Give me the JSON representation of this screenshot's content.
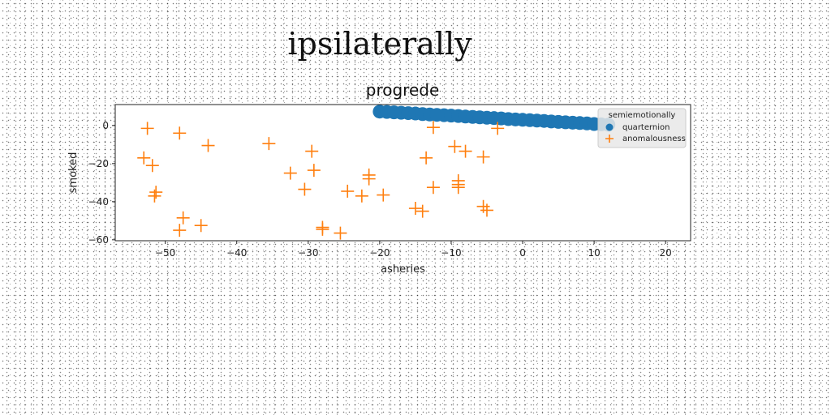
{
  "chart_data": {
    "type": "scatter",
    "suptitle": "ipsilaterally",
    "title": "progrede",
    "xlabel": "asheries",
    "ylabel": "smoked",
    "xlim": [
      -57,
      23.5
    ],
    "ylim": [
      -60.5,
      11
    ],
    "xticks": [
      -50,
      -40,
      -30,
      -20,
      -10,
      0,
      10,
      20
    ],
    "yticks": [
      0,
      -20,
      -40,
      -60
    ],
    "grid": false,
    "legend": {
      "title": "semiemotionally",
      "position": "upper right"
    },
    "series": [
      {
        "name": "quarternion",
        "marker": "circle",
        "color": "#1f77b4",
        "x": [
          -20,
          -19,
          -18,
          -17,
          -16,
          -15,
          -14,
          -13,
          -12,
          -11,
          -10,
          -9,
          -8,
          -7,
          -6,
          -5,
          -4,
          -3,
          -2,
          -1,
          0,
          1,
          2,
          3,
          4,
          5,
          6,
          7,
          8,
          9,
          10,
          11,
          12
        ],
        "y": [
          7.3,
          7.1,
          6.9,
          6.7,
          6.5,
          6.3,
          6.0,
          5.8,
          5.6,
          5.4,
          5.2,
          5.0,
          4.7,
          4.5,
          4.3,
          4.1,
          3.9,
          3.7,
          3.4,
          3.2,
          3.0,
          2.8,
          2.6,
          2.4,
          2.1,
          1.9,
          1.7,
          1.5,
          1.3,
          1.1,
          0.8,
          0.6,
          0.4
        ]
      },
      {
        "name": "anomalousness",
        "marker": "plus",
        "color": "#ff7f0e",
        "x": [
          -52.5,
          -53,
          -51.8,
          -51.5,
          -51.3,
          -48,
          -48,
          -47.5,
          -45,
          -44,
          -35.5,
          -32.5,
          -30.5,
          -29.5,
          -29.2,
          -28,
          -28,
          -25.5,
          -24.5,
          -22.5,
          -21.5,
          -21.5,
          -19.5,
          -15,
          -14,
          -13.5,
          -12.5,
          -12.5,
          -9.5,
          -9,
          -9,
          -9,
          -8,
          -5.5,
          -5.5,
          -5,
          -3.5
        ],
        "y": [
          -1.5,
          -17,
          -21,
          -37,
          -35,
          -4,
          -55,
          -48.5,
          -52.5,
          -10.5,
          -9.5,
          -25,
          -33.5,
          -13.5,
          -23.5,
          -53.5,
          -54.5,
          -56.5,
          -34.5,
          -37,
          -26,
          -28,
          -36.5,
          -43.5,
          -45,
          -17,
          -1,
          -32.5,
          -11,
          -32.5,
          -29,
          -31,
          -13.5,
          -16.5,
          -42.5,
          -44.5,
          -1.5
        ]
      }
    ]
  }
}
